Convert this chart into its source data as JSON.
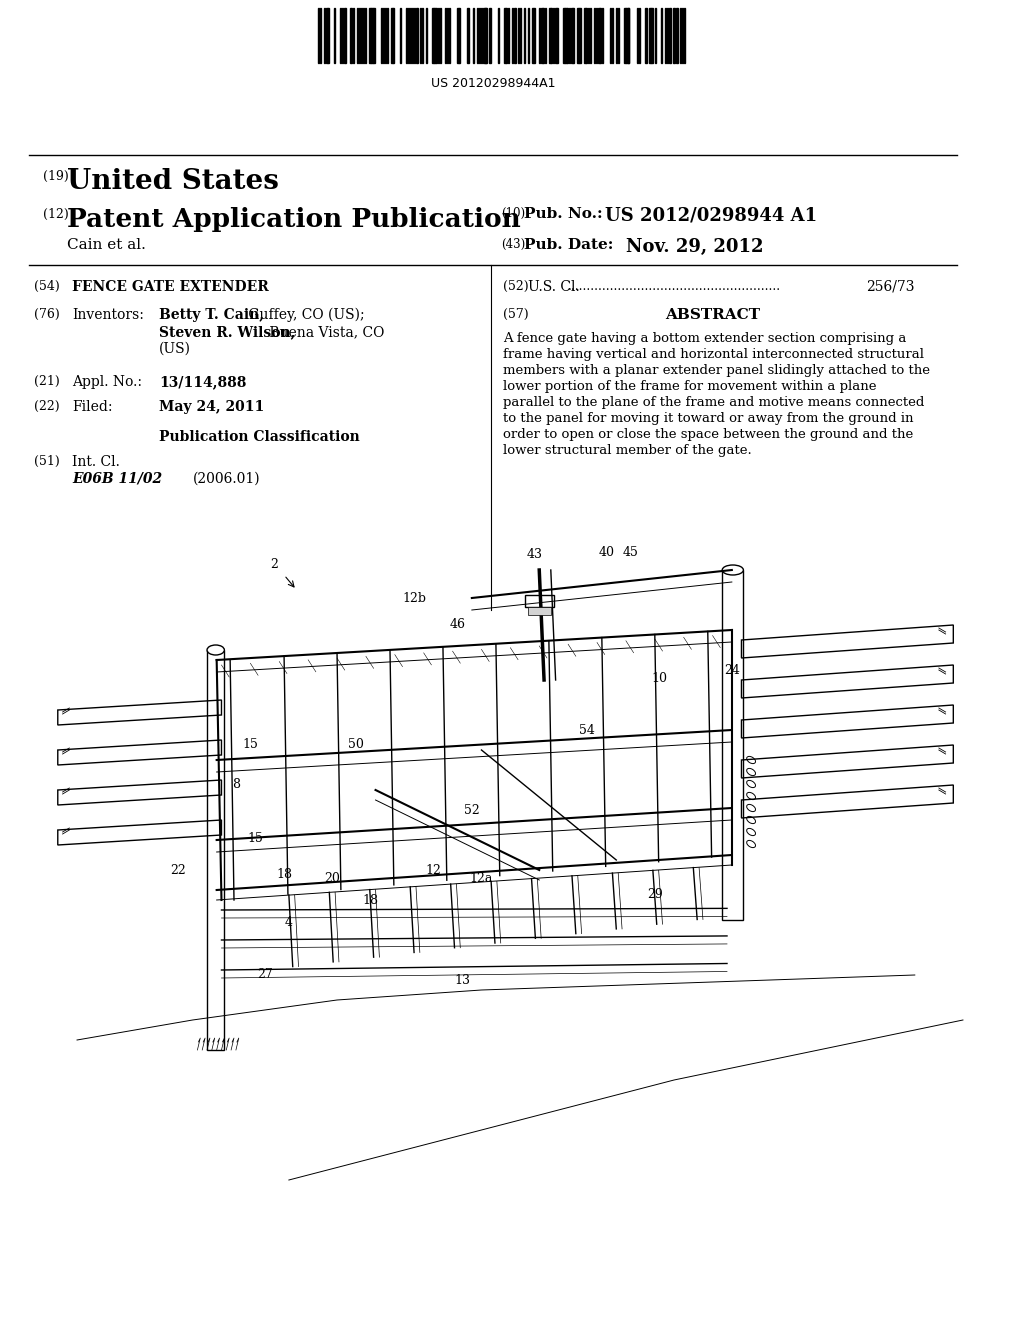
{
  "bg_color": "#f0f0f0",
  "page_bg": "#ffffff",
  "barcode_text": "US 20120298944A1",
  "label_19": "(19)",
  "united_states": "United States",
  "label_12": "(12)",
  "patent_app_pub": "Patent Application Publication",
  "label_10": "(10)",
  "pub_no_label": "Pub. No.:",
  "pub_no_value": "US 2012/0298944 A1",
  "assignee": "Cain et al.",
  "label_43": "(43)",
  "pub_date_label": "Pub. Date:",
  "pub_date_value": "Nov. 29, 2012",
  "label_54": "(54)",
  "title_label": "FENCE GATE EXTENDER",
  "label_52": "(52)",
  "us_cl_label": "U.S. Cl.",
  "us_cl_dots": "...........................................................",
  "us_cl_value": "256/73",
  "label_76": "(76)",
  "inventors_label": "Inventors:",
  "inventor1_bold": "Betty T. Cain,",
  "inventor1_rest": " Guffey, CO (US);",
  "inventor2_bold": "Steven R. Wilson,",
  "inventor2_rest": " Buena Vista, CO",
  "inventor2_end": "(US)",
  "label_57": "(57)",
  "abstract_title": "ABSTRACT",
  "abstract_text": "A fence gate having a bottom extender section comprising a frame having vertical and horizontal interconnected structural members with a planar extender panel slidingly attached to the lower portion of the frame for movement within a plane parallel to the plane of the frame and motive means connected to the panel for moving it toward or away from the ground in order to open or close the space between the ground and the lower structural member of the gate.",
  "label_21": "(21)",
  "appl_no_label": "Appl. No.:",
  "appl_no_value": "13/114,888",
  "label_22": "(22)",
  "filed_label": "Filed:",
  "filed_value": "May 24, 2011",
  "pub_class_title": "Publication Classification",
  "label_51": "(51)",
  "int_cl_label": "Int. Cl.",
  "int_cl_code_bold": "E06B 11/02",
  "int_cl_year": "(2006.01)"
}
